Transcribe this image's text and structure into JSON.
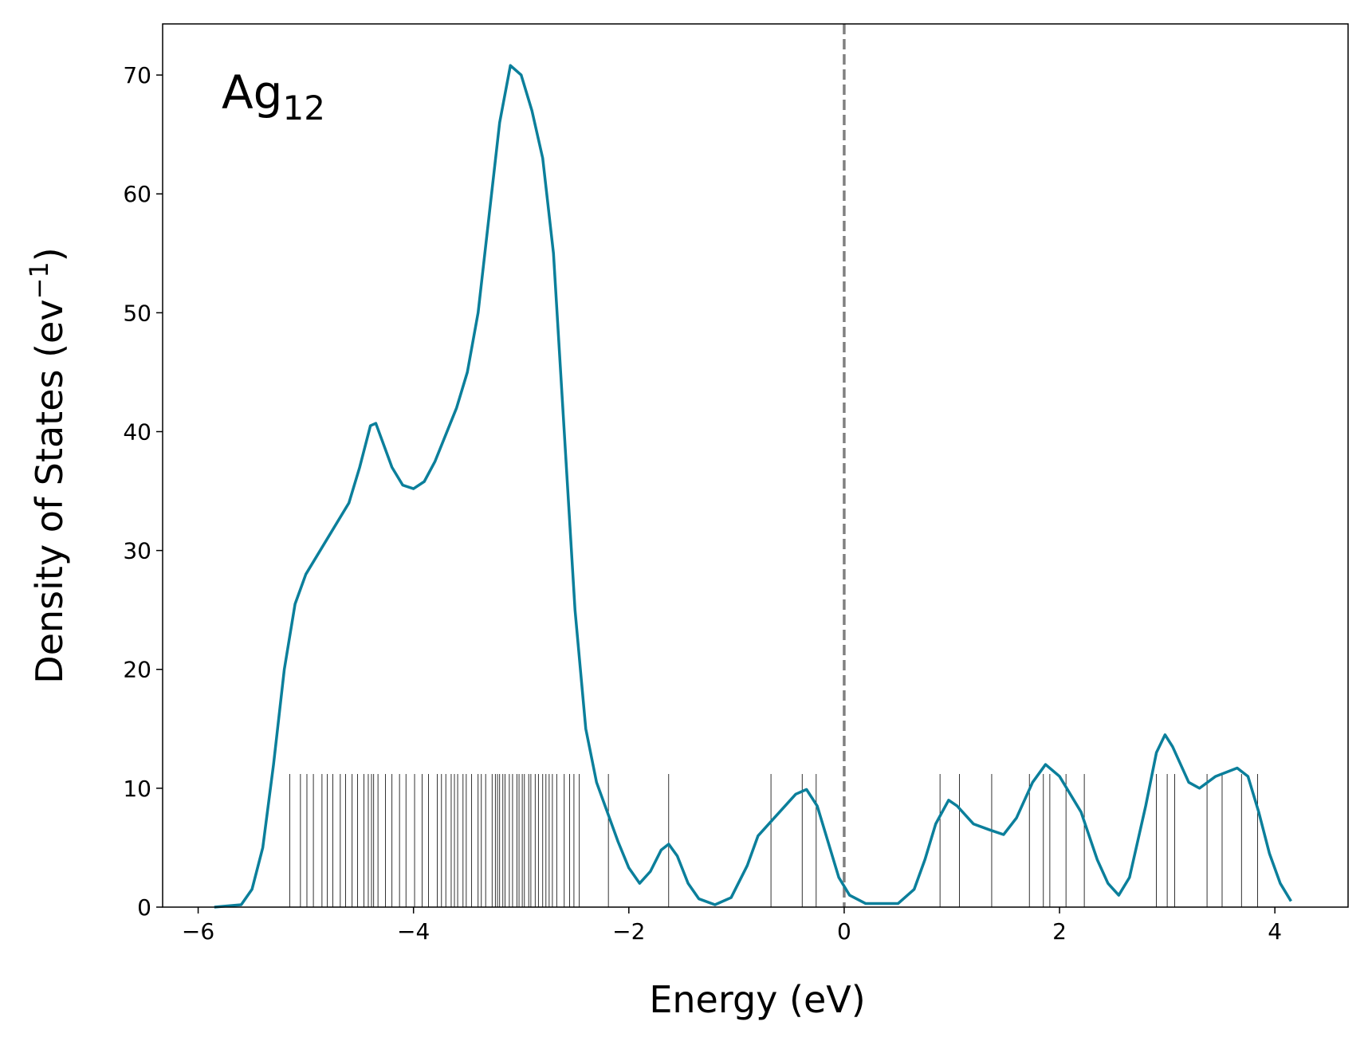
{
  "chart_data": {
    "type": "line",
    "xlabel": "Energy (eV)",
    "ylabel": "Density of States (ev",
    "ylabel_sup": "−1",
    "ylabel_end": ")",
    "annotation": {
      "text": "Ag",
      "subscript": "12"
    },
    "xlim": [
      -6.33,
      4.68
    ],
    "ylim": [
      0,
      74.3
    ],
    "xticks": [
      {
        "value": -6,
        "label": "−6"
      },
      {
        "value": -4,
        "label": "−4"
      },
      {
        "value": -2,
        "label": "−2"
      },
      0,
      2,
      4
    ],
    "yticks": [
      0,
      10,
      20,
      30,
      40,
      50,
      60,
      70
    ],
    "vline": 0,
    "vline_color": "#808080",
    "series": [
      {
        "color": "#0b7f9b",
        "x": [
          -5.85,
          -5.6,
          -5.5,
          -5.4,
          -5.3,
          -5.2,
          -5.1,
          -5.0,
          -4.8,
          -4.6,
          -4.5,
          -4.4,
          -4.35,
          -4.2,
          -4.1,
          -4.0,
          -3.9,
          -3.8,
          -3.6,
          -3.5,
          -3.4,
          -3.3,
          -3.2,
          -3.1,
          -3.0,
          -2.9,
          -2.8,
          -2.7,
          -2.6,
          -2.5,
          -2.4,
          -2.3,
          -2.2,
          -2.1,
          -2.0,
          -1.9,
          -1.8,
          -1.7,
          -1.63,
          -1.55,
          -1.45,
          -1.35,
          -1.2,
          -1.05,
          -0.9,
          -0.8,
          -0.6,
          -0.45,
          -0.35,
          -0.25,
          -0.15,
          -0.05,
          0.05,
          0.2,
          0.5,
          0.65,
          0.75,
          0.85,
          0.97,
          1.05,
          1.2,
          1.35,
          1.48,
          1.6,
          1.75,
          1.87,
          2.0,
          2.2,
          2.35,
          2.45,
          2.55,
          2.65,
          2.8,
          2.9,
          2.98,
          3.05,
          3.2,
          3.3,
          3.45,
          3.65,
          3.75,
          3.85,
          3.95,
          4.05,
          4.15
        ],
        "values": [
          0,
          0.2,
          1.5,
          5,
          12,
          20,
          25.5,
          28,
          31,
          34,
          37,
          40.5,
          40.7,
          37,
          35.5,
          35.2,
          35.8,
          37.5,
          42,
          45,
          50,
          58,
          66,
          70.8,
          70,
          67,
          63,
          55,
          40,
          25,
          15,
          10.5,
          8,
          5.5,
          3.3,
          2,
          3,
          4.8,
          5.3,
          4.3,
          2,
          0.7,
          0.2,
          0.8,
          3.5,
          6,
          8,
          9.5,
          9.9,
          8.5,
          5.5,
          2.5,
          1,
          0.3,
          0.3,
          1.5,
          4,
          7,
          9,
          8.5,
          7,
          6.5,
          6.1,
          7.5,
          10.5,
          12,
          11,
          8,
          4,
          2,
          1,
          2.5,
          8.5,
          13,
          14.5,
          13.5,
          10.5,
          10,
          11,
          11.7,
          11,
          8,
          4.5,
          2,
          0.5
        ]
      }
    ],
    "eigenvalues": [
      -5.15,
      -5.05,
      -4.99,
      -4.93,
      -4.85,
      -4.8,
      -4.75,
      -4.68,
      -4.63,
      -4.57,
      -4.52,
      -4.46,
      -4.42,
      -4.39,
      -4.37,
      -4.33,
      -4.26,
      -4.2,
      -4.13,
      -4.07,
      -3.99,
      -3.92,
      -3.86,
      -3.78,
      -3.74,
      -3.7,
      -3.65,
      -3.62,
      -3.59,
      -3.54,
      -3.51,
      -3.46,
      -3.4,
      -3.37,
      -3.33,
      -3.27,
      -3.24,
      -3.22,
      -3.2,
      -3.17,
      -3.15,
      -3.11,
      -3.08,
      -3.04,
      -3.02,
      -2.99,
      -2.97,
      -2.93,
      -2.91,
      -2.87,
      -2.84,
      -2.8,
      -2.77,
      -2.74,
      -2.71,
      -2.67,
      -2.6,
      -2.55,
      -2.51,
      -2.46,
      -2.19,
      -1.63,
      -0.68,
      -0.39,
      -0.26,
      0.89,
      1.07,
      1.37,
      1.72,
      1.85,
      1.91,
      2.06,
      2.23,
      2.9,
      3.0,
      3.07,
      3.37,
      3.51,
      3.69,
      3.84
    ],
    "stick_height": 11.2,
    "stick_color": "#000000"
  }
}
